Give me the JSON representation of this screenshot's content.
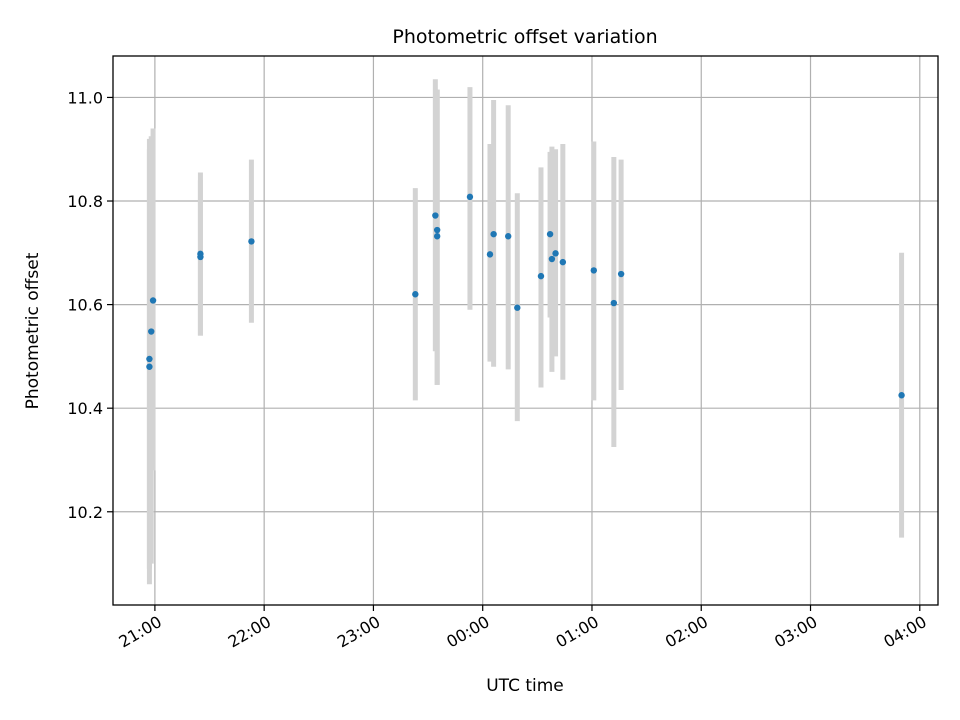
{
  "chart_data": {
    "type": "scatter",
    "title": "Photometric offset variation",
    "xlabel": "UTC time",
    "ylabel": "Photometric offset",
    "x_axis_kind": "time",
    "xlim": [
      "20:37",
      "04:10"
    ],
    "ylim": [
      10.02,
      11.08
    ],
    "x_ticks": [
      "21:00",
      "22:00",
      "23:00",
      "00:00",
      "01:00",
      "02:00",
      "03:00",
      "04:00"
    ],
    "y_ticks": [
      10.2,
      10.4,
      10.6,
      10.8,
      11.0
    ],
    "grid": true,
    "point_color": "#1f77b4",
    "errorbar_color": "#d3d3d3",
    "series": [
      {
        "x": [
          "20:57",
          "20:57",
          "20:58",
          "20:59",
          "21:25",
          "21:25",
          "21:53",
          "23:23",
          "23:34",
          "23:35",
          "23:35",
          "23:53",
          "00:04",
          "00:06",
          "00:14",
          "00:19",
          "00:32",
          "00:37",
          "00:38",
          "00:40",
          "00:44",
          "01:01",
          "01:12",
          "01:16",
          "03:50"
        ],
        "y": [
          10.48,
          10.495,
          10.548,
          10.608,
          10.698,
          10.692,
          10.722,
          10.62,
          10.772,
          10.744,
          10.732,
          10.808,
          10.697,
          10.736,
          10.732,
          10.594,
          10.655,
          10.736,
          10.688,
          10.699,
          10.682,
          10.666,
          10.603,
          10.659,
          10.425
        ],
        "err_low": [
          10.06,
          10.09,
          10.1,
          10.28,
          10.54,
          10.54,
          10.565,
          10.415,
          10.51,
          10.445,
          10.445,
          10.59,
          10.49,
          10.48,
          10.475,
          10.375,
          10.44,
          10.575,
          10.47,
          10.5,
          10.455,
          10.415,
          10.325,
          10.435,
          10.15
        ],
        "err_high": [
          10.9,
          10.92,
          10.925,
          10.94,
          10.855,
          10.84,
          10.88,
          10.825,
          11.035,
          11.015,
          11.015,
          11.02,
          10.91,
          10.995,
          10.985,
          10.815,
          10.865,
          10.895,
          10.905,
          10.9,
          10.91,
          10.915,
          10.885,
          10.88,
          10.7
        ]
      }
    ]
  }
}
